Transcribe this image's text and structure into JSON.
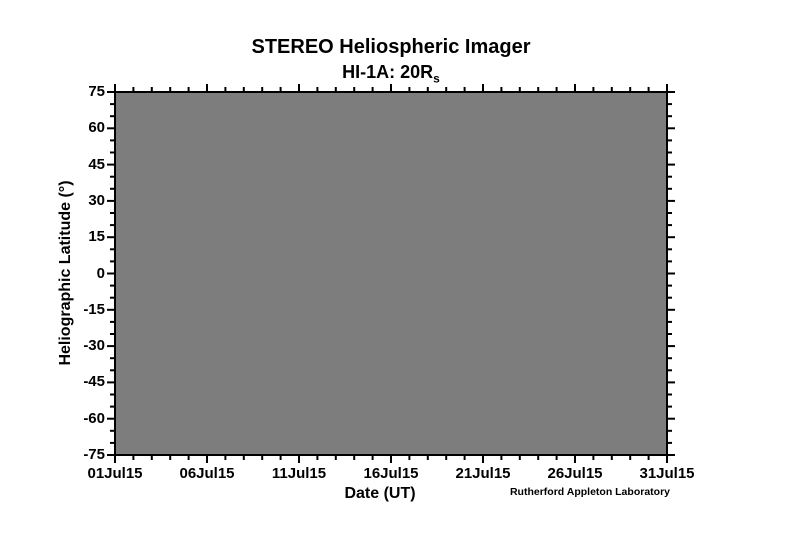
{
  "header": {
    "title": "STEREO Heliospheric Imager",
    "subtitle_main": "HI-1A: 20R",
    "subtitle_sub": "s"
  },
  "credit": "Rutherford Appleton Laboratory",
  "chart_data": {
    "type": "heatmap",
    "title": "STEREO Heliospheric Imager",
    "subtitle": "HI-1A: 20R_s",
    "xlabel": "Date (UT)",
    "ylabel": "Heliographic Latitude (°)",
    "x_axis": {
      "tick_labels": [
        "01Jul15",
        "06Jul15",
        "11Jul15",
        "16Jul15",
        "21Jul15",
        "26Jul15",
        "31Jul15"
      ],
      "total_days": 30,
      "major_step_days": 5,
      "minor_step_days": 1
    },
    "y_axis": {
      "tick_labels": [
        "75",
        "60",
        "45",
        "30",
        "15",
        "0",
        "-15",
        "-30",
        "-45",
        "-60",
        "-75"
      ],
      "max": 75,
      "min": -75,
      "major_step": 15,
      "minor_step": 5
    },
    "xlim": [
      "01Jul15",
      "31Jul15"
    ],
    "ylim": [
      -75,
      75
    ],
    "values": "uniform field - no data rendered, entire plot area is a single flat gray fill",
    "series": [],
    "legend": "none",
    "grid": false,
    "fill_color": "#7d7d7d",
    "frame_color": "#000000",
    "background_color": "#ffffff",
    "text_color": "#000000"
  }
}
